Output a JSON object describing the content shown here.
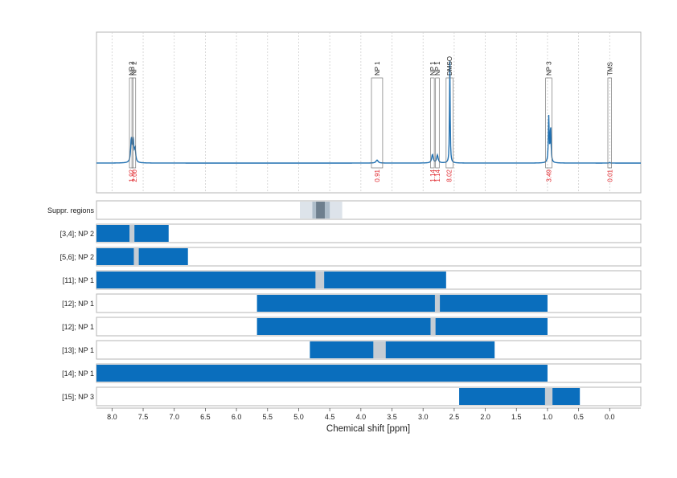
{
  "chart_data": {
    "type": "nmr-spectrum-with-region-bars",
    "xlabel": "Chemical shift [ppm]",
    "xlim": [
      8.25,
      -0.5
    ],
    "x_ticks": [
      "8.0",
      "7.5",
      "7.0",
      "6.5",
      "6.0",
      "5.5",
      "5.0",
      "4.5",
      "4.0",
      "3.5",
      "3.0",
      "2.5",
      "2.0",
      "1.5",
      "1.0",
      "0.5",
      "0.0"
    ],
    "x_tick_values": [
      8.0,
      7.5,
      7.0,
      6.5,
      6.0,
      5.5,
      5.0,
      4.5,
      4.0,
      3.5,
      3.0,
      2.5,
      2.0,
      1.5,
      1.0,
      0.5,
      0.0
    ],
    "grid": true,
    "colors": {
      "bar": "#0a6ebd",
      "spectrum": "#1f6fb0",
      "gap": "#c5ccd3",
      "integral": "#e0282e",
      "suppr_outer": "#dde3ea",
      "suppr_mid": "#aebdca",
      "suppr_inner": "#6e7f8e"
    },
    "spectrum": {
      "peaks": [
        {
          "x": 7.69,
          "h": 0.19,
          "w": 0.012
        },
        {
          "x": 7.66,
          "h": 0.18,
          "w": 0.012
        },
        {
          "x": 7.63,
          "h": 0.1,
          "w": 0.012
        },
        {
          "x": 3.74,
          "h": 0.025,
          "w": 0.02
        },
        {
          "x": 2.85,
          "h": 0.07,
          "w": 0.015
        },
        {
          "x": 2.77,
          "h": 0.065,
          "w": 0.015
        },
        {
          "x": 2.57,
          "h": 0.85,
          "w": 0.006
        },
        {
          "x": 0.98,
          "h": 0.38,
          "w": 0.008
        },
        {
          "x": 0.95,
          "h": 0.3,
          "w": 0.008
        },
        {
          "x": 0.0,
          "h": 0.004,
          "w": 0.01
        }
      ]
    },
    "annotations": [
      {
        "label": "NP 2",
        "from": 7.72,
        "to": 7.66
      },
      {
        "label": "NP 2",
        "from": 7.68,
        "to": 7.62
      },
      {
        "label": "NP 1",
        "from": 3.83,
        "to": 3.65
      },
      {
        "label": "NP 1",
        "from": 2.88,
        "to": 2.82
      },
      {
        "label": "NP 1",
        "from": 2.8,
        "to": 2.74
      },
      {
        "label": "DMSO",
        "from": 2.63,
        "to": 2.52
      },
      {
        "label": "NP 3",
        "from": 1.03,
        "to": 0.93
      },
      {
        "label": "TMS",
        "from": 0.03,
        "to": -0.03
      }
    ],
    "integrals": [
      {
        "x": 7.69,
        "label": "1.92"
      },
      {
        "x": 7.64,
        "label": "2.00"
      },
      {
        "x": 3.74,
        "label": "0.91"
      },
      {
        "x": 2.85,
        "label": "1.14"
      },
      {
        "x": 2.77,
        "label": "1.14"
      },
      {
        "x": 2.58,
        "label": "8.02"
      },
      {
        "x": 0.98,
        "label": "3.49"
      },
      {
        "x": 0.0,
        "label": "0.01"
      }
    ],
    "suppression": {
      "label": "Suppr. regions",
      "outer": [
        4.98,
        4.3
      ],
      "mid": [
        4.78,
        4.5
      ],
      "inner": [
        4.72,
        4.58
      ]
    },
    "rows": [
      {
        "label": "[3,4]; NP 2",
        "from": 8.25,
        "to": 7.09,
        "gap": [
          7.72,
          7.64
        ]
      },
      {
        "label": "[5,6]; NP 2",
        "from": 8.25,
        "to": 6.78,
        "gap": [
          7.65,
          7.57
        ]
      },
      {
        "label": "[11]; NP 1",
        "from": 8.25,
        "to": 2.63,
        "gap": [
          4.73,
          4.59
        ]
      },
      {
        "label": "[12]; NP 1",
        "from": 5.67,
        "to": 1.0,
        "gap": [
          2.81,
          2.73
        ]
      },
      {
        "label": "[12]; NP 1",
        "from": 5.67,
        "to": 1.0,
        "gap": [
          2.88,
          2.8
        ]
      },
      {
        "label": "[13]; NP 1",
        "from": 4.82,
        "to": 1.85,
        "gap": [
          3.8,
          3.6
        ]
      },
      {
        "label": "[14]; NP 1",
        "from": 8.25,
        "to": 1.0,
        "gap": null
      },
      {
        "label": "[15]; NP 3",
        "from": 2.42,
        "to": 0.48,
        "gap": [
          1.04,
          0.92
        ]
      }
    ]
  }
}
